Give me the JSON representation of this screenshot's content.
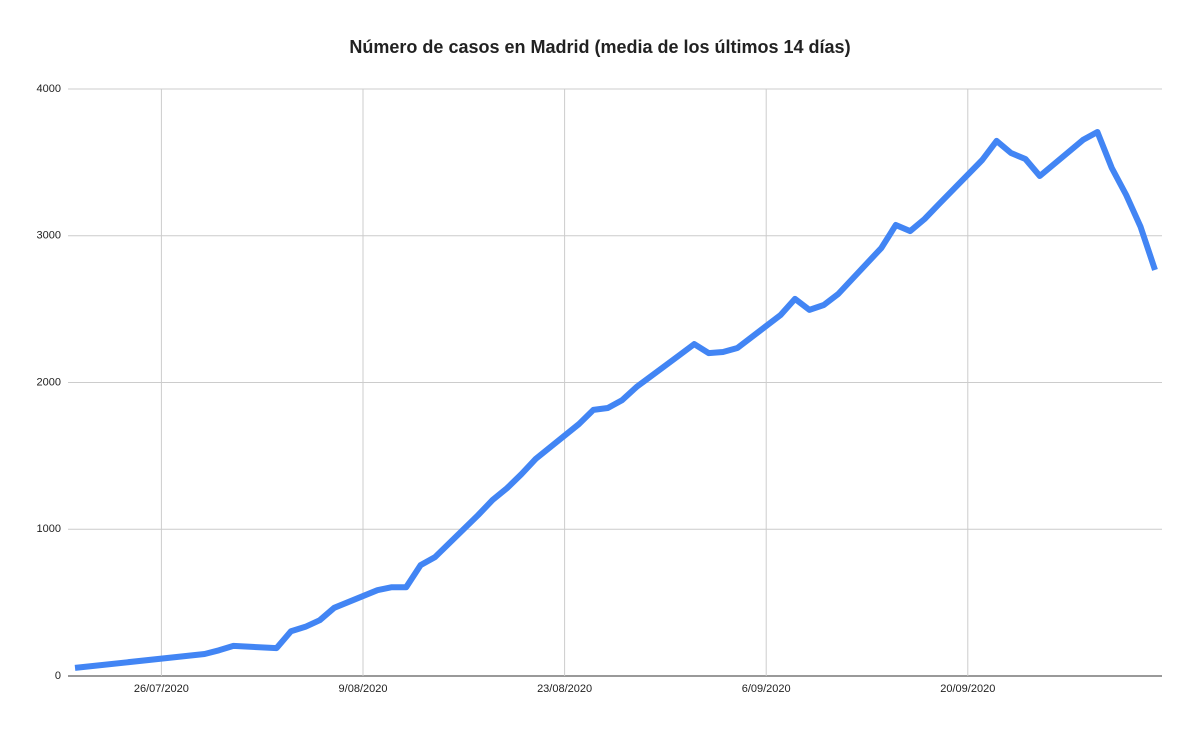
{
  "chart_data": {
    "type": "line",
    "title": "Número de casos en Madrid (media de los últimos 14 días)",
    "x": [
      "20/07/2020",
      "29/07/2020",
      "30/07/2020",
      "31/07/2020",
      "3/08/2020",
      "4/08/2020",
      "5/08/2020",
      "6/08/2020",
      "7/08/2020",
      "10/08/2020",
      "11/08/2020",
      "12/08/2020",
      "13/08/2020",
      "14/08/2020",
      "17/08/2020",
      "18/08/2020",
      "19/08/2020",
      "20/08/2020",
      "21/08/2020",
      "24/08/2020",
      "25/08/2020",
      "26/08/2020",
      "27/08/2020",
      "28/08/2020",
      "31/08/2020",
      "1/09/2020",
      "2/09/2020",
      "3/09/2020",
      "4/09/2020",
      "7/09/2020",
      "8/09/2020",
      "9/09/2020",
      "10/09/2020",
      "11/09/2020",
      "14/09/2020",
      "15/09/2020",
      "16/09/2020",
      "17/09/2020",
      "18/09/2020",
      "21/09/2020",
      "22/09/2020",
      "23/09/2020",
      "24/09/2020",
      "25/09/2020",
      "28/09/2020",
      "29/09/2020",
      "30/09/2020",
      "1/10/2020",
      "2/10/2020",
      "3/10/2020"
    ],
    "series": [
      {
        "color": "#4285f4",
        "values": [
          55,
          150,
          175,
          205,
          190,
          305,
          335,
          380,
          465,
          585,
          605,
          605,
          756,
          810,
          1097,
          1200,
          1280,
          1375,
          1480,
          1717,
          1813,
          1826,
          1880,
          1970,
          2188,
          2262,
          2200,
          2208,
          2235,
          2460,
          2570,
          2495,
          2528,
          2603,
          2917,
          3073,
          3032,
          3114,
          3216,
          3516,
          3646,
          3564,
          3523,
          3407,
          3653,
          3707,
          3462,
          3278,
          3060,
          2767
        ]
      }
    ],
    "xlim": [
      "20/07/2020",
      "3/10/2020"
    ],
    "xticks": [
      "26/07/2020",
      "9/08/2020",
      "23/08/2020",
      "6/09/2020",
      "20/09/2020"
    ],
    "ylim": [
      0,
      4000
    ],
    "yticks": [
      0,
      1000,
      2000,
      3000,
      4000
    ],
    "grid": true
  }
}
